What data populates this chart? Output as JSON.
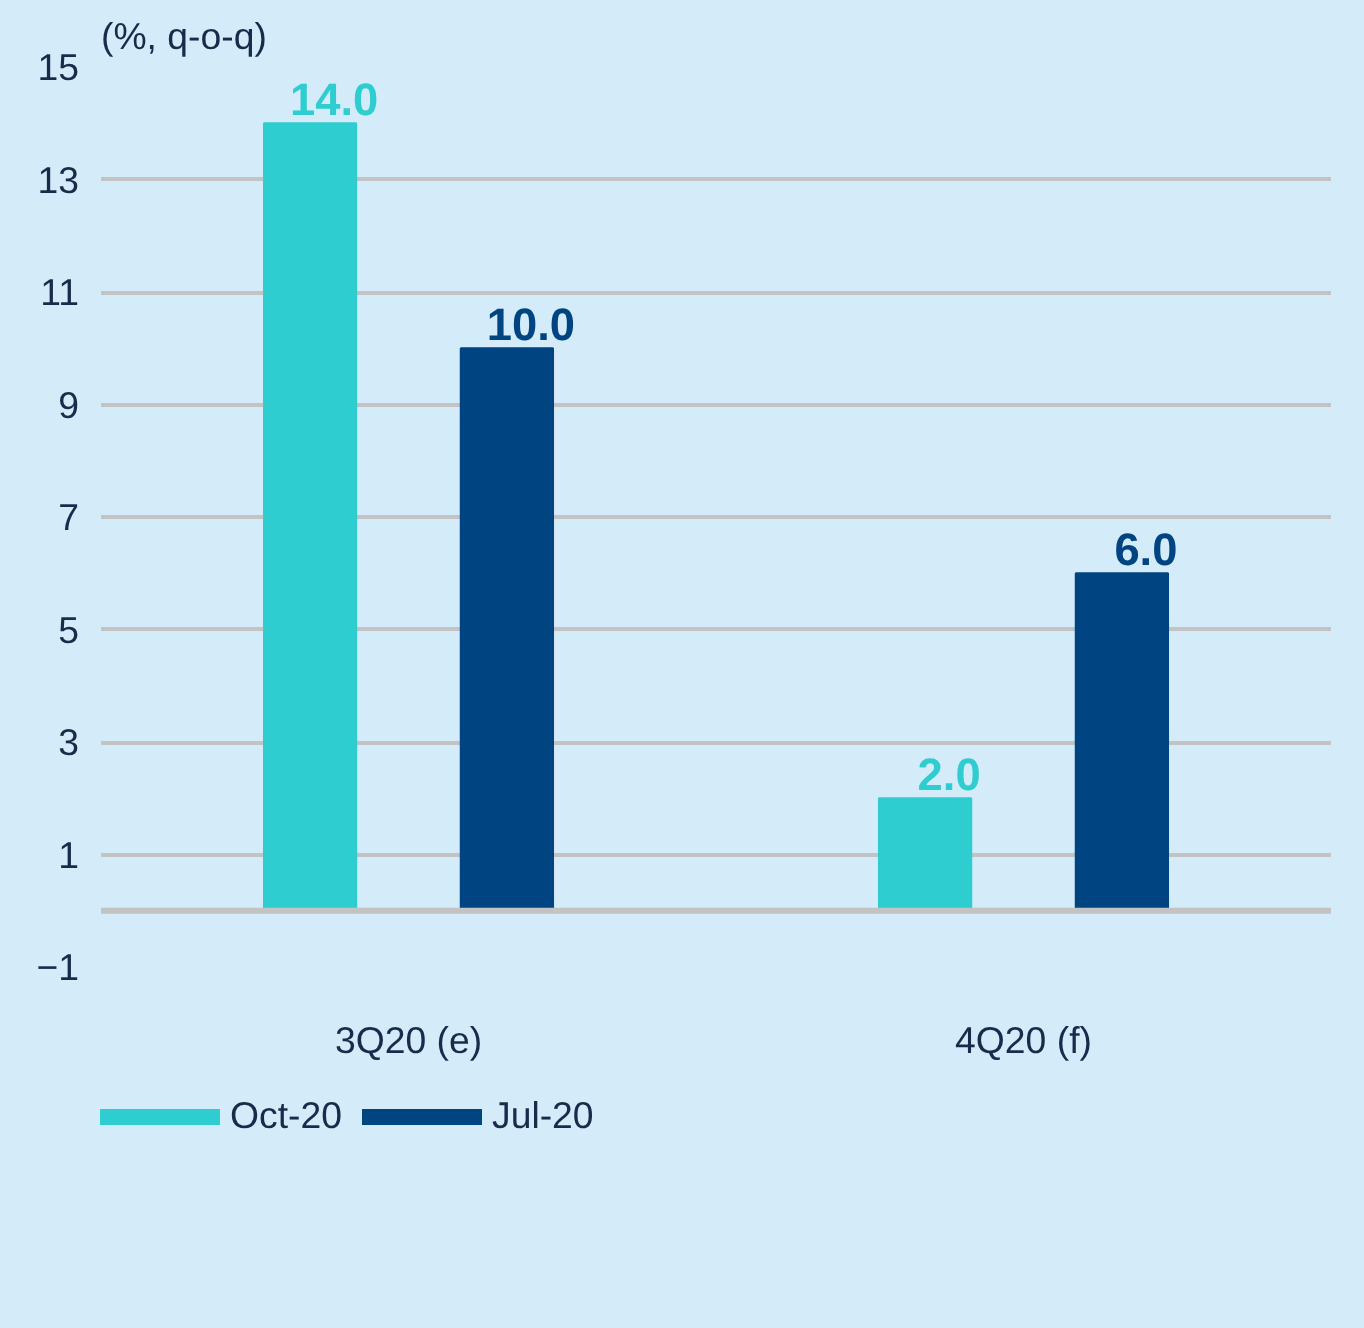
{
  "chart_data": {
    "type": "bar",
    "ylabel": "(%, q-o-q)",
    "categories": [
      "3Q20 (e)",
      "4Q20 (f)"
    ],
    "series": [
      {
        "name": "Oct-20",
        "color": "#2ecdcf",
        "values": [
          14.0,
          2.0
        ],
        "value_labels": [
          "14.0",
          "2.0"
        ]
      },
      {
        "name": "Jul-20",
        "color": "#004481",
        "values": [
          10.0,
          6.0
        ],
        "value_labels": [
          "10.0",
          "6.0"
        ]
      }
    ],
    "ylim": [
      -1,
      15
    ],
    "yticks": [
      -1,
      1,
      3,
      5,
      7,
      9,
      11,
      13,
      15
    ],
    "grid": "y",
    "legend": "bottom left"
  }
}
